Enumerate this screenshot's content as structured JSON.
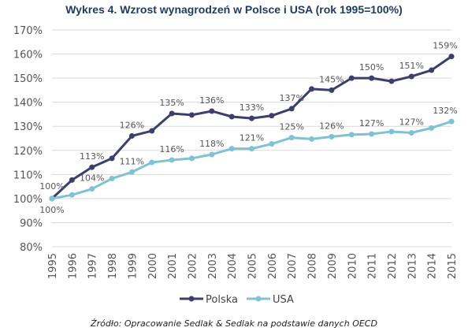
{
  "chart_data": {
    "type": "line",
    "title": "Wykres 4. Wzrost wynagrodzeń w Polsce i USA (rok 1995=100%)",
    "source": "Źródło: Opracowanie Sedlak & Sedlak na podstawie danych OECD",
    "x": [
      "1995",
      "1996",
      "1997",
      "1998",
      "1999",
      "2000",
      "2001",
      "2002",
      "2003",
      "2004",
      "2005",
      "2006",
      "2007",
      "2008",
      "2009",
      "2010",
      "2011",
      "2012",
      "2013",
      "2014",
      "2015"
    ],
    "ylim": [
      80,
      170
    ],
    "yticks": [
      "80%",
      "90%",
      "100%",
      "110%",
      "120%",
      "130%",
      "140%",
      "150%",
      "160%",
      "170%"
    ],
    "grid": true,
    "legend_position": "bottom",
    "series": [
      {
        "name": "Polska",
        "color": "#3a3f6e",
        "values": [
          100,
          107.7,
          113,
          116.7,
          126,
          128.1,
          135.3,
          134.7,
          136.3,
          134,
          133.3,
          134.4,
          137.3,
          145.5,
          145,
          150,
          150,
          148.7,
          150.7,
          153.3,
          159
        ],
        "data_labels": [
          {
            "i": 0,
            "text": "100%"
          },
          {
            "i": 2,
            "text": "113%"
          },
          {
            "i": 4,
            "text": "126%"
          },
          {
            "i": 6,
            "text": "135%"
          },
          {
            "i": 8,
            "text": "136%"
          },
          {
            "i": 10,
            "text": "133%"
          },
          {
            "i": 12,
            "text": "137%"
          },
          {
            "i": 14,
            "text": "145%"
          },
          {
            "i": 16,
            "text": "150%"
          },
          {
            "i": 18,
            "text": "151%"
          },
          {
            "i": 20,
            "text": "159%"
          }
        ]
      },
      {
        "name": "USA",
        "color": "#7cc4d4",
        "values": [
          100,
          101.5,
          104,
          108.3,
          111,
          115,
          116,
          116.7,
          118.3,
          120.7,
          120.7,
          122.7,
          125.3,
          124.7,
          125.7,
          126.5,
          126.8,
          127.8,
          127.3,
          129.3,
          132
        ],
        "data_labels": [
          {
            "i": 0,
            "text": "100%"
          },
          {
            "i": 2,
            "text": "104%"
          },
          {
            "i": 4,
            "text": "111%"
          },
          {
            "i": 6,
            "text": "116%"
          },
          {
            "i": 8,
            "text": "118%"
          },
          {
            "i": 10,
            "text": "121%"
          },
          {
            "i": 12,
            "text": "125%"
          },
          {
            "i": 14,
            "text": "126%"
          },
          {
            "i": 16,
            "text": "127%"
          },
          {
            "i": 18,
            "text": "127%"
          },
          {
            "i": 20,
            "text": "132%"
          }
        ]
      }
    ]
  }
}
